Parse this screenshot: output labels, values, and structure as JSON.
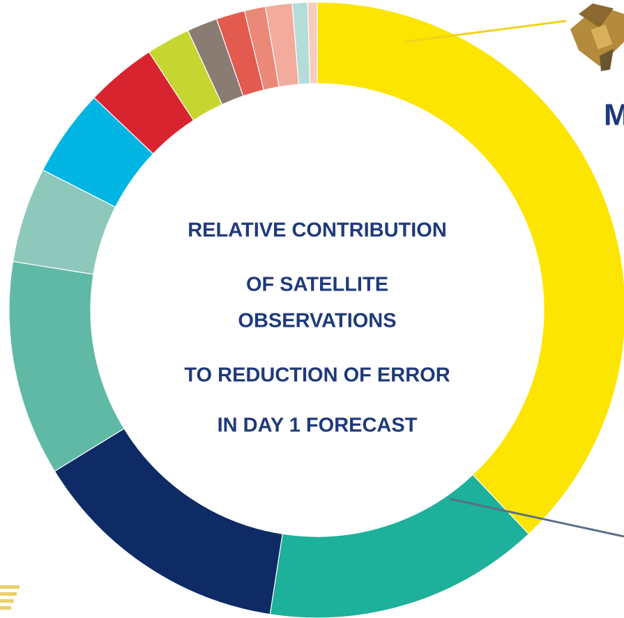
{
  "chart_data": {
    "type": "donut",
    "center_text": [
      "RELATIVE CONTRIBUTION",
      "OF SATELLITE",
      "OBSERVATIONS",
      "TO REDUCTION OF ERROR",
      "IN DAY 1 FORECAST"
    ],
    "annotation": "M",
    "categories": [
      null,
      null,
      null,
      null,
      null,
      null,
      null,
      null,
      null,
      null,
      null,
      null,
      null,
      null
    ],
    "values": [
      38,
      14.5,
      13.8,
      11.3,
      5,
      4.6,
      3.7,
      2.3,
      1.6,
      1.5,
      1.1,
      1.4,
      0.8,
      0.5
    ],
    "colors": [
      "#fce500",
      "#1db09a",
      "#0f2b66",
      "#5fb9a5",
      "#8dc8bb",
      "#00b5e2",
      "#d8242f",
      "#c7d530",
      "#8a7b73",
      "#e35a4f",
      "#eb8878",
      "#f2ab9c",
      "#b5ddd7",
      "#f8cbc0"
    ]
  }
}
